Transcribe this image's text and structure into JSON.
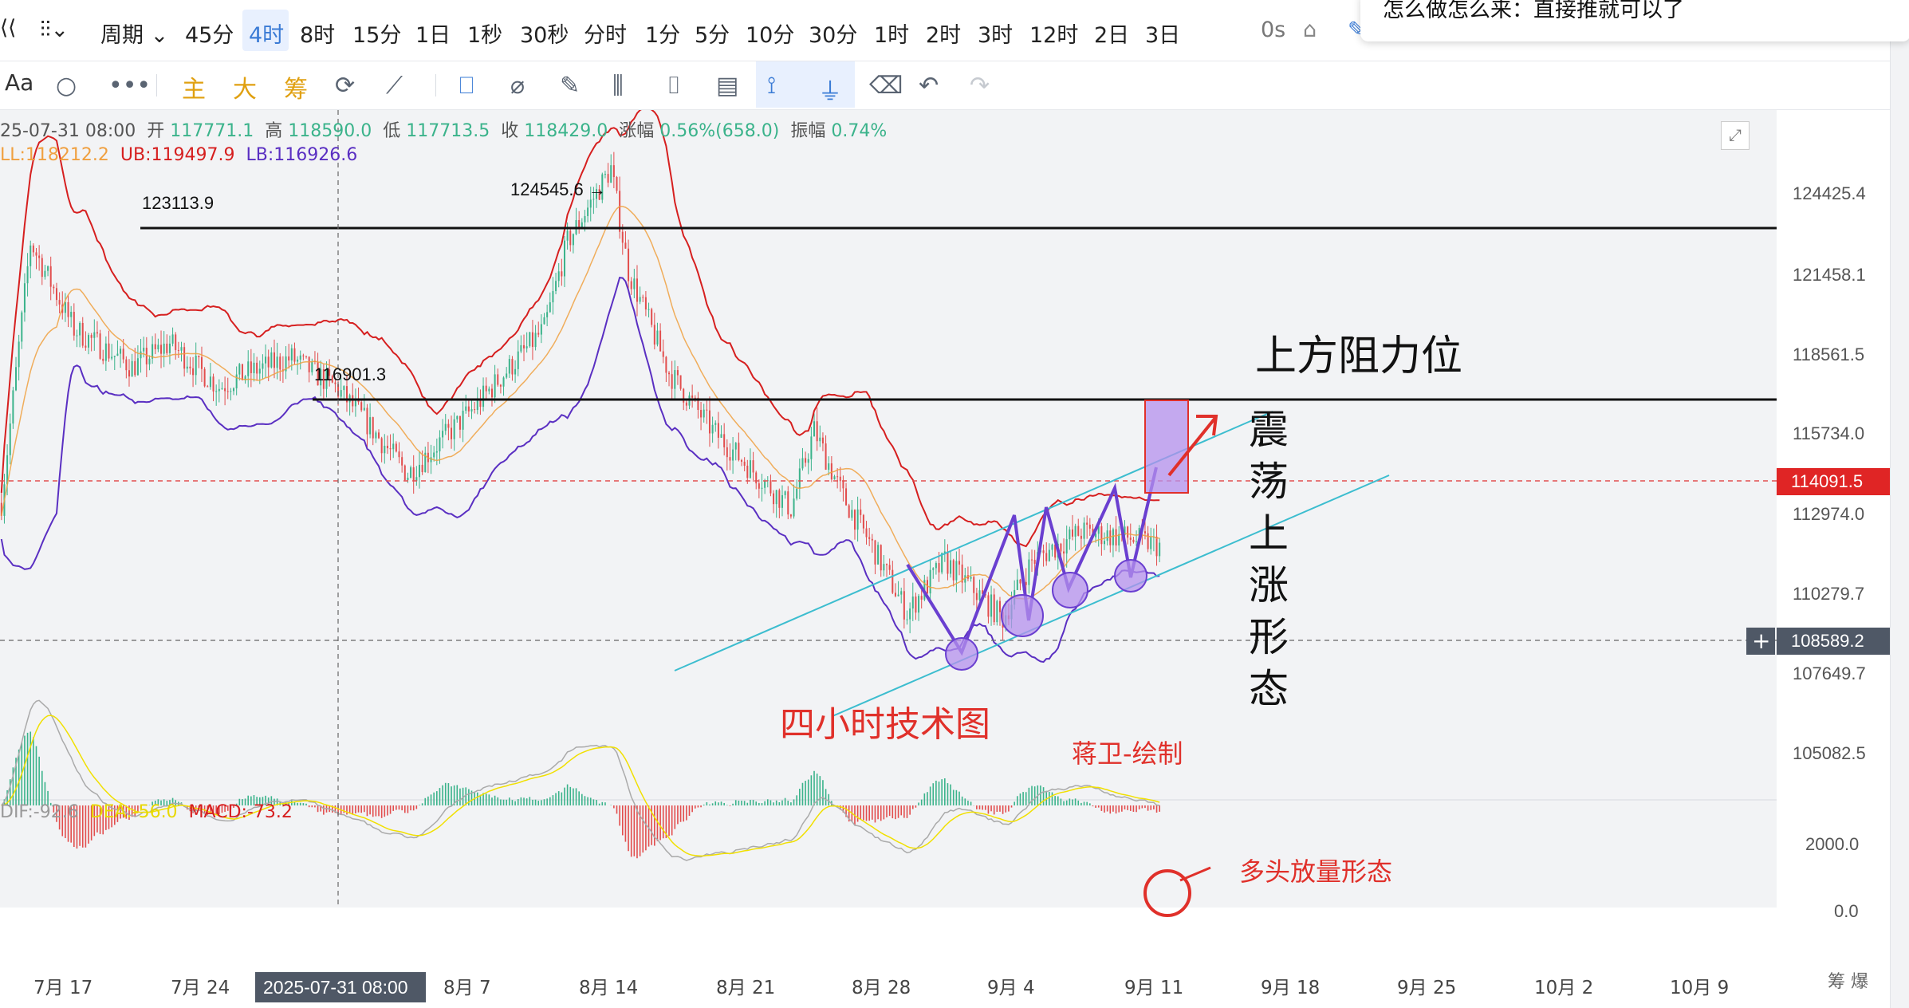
{
  "toolbar": {
    "periods_label": "周期",
    "periods": [
      "45分",
      "4时",
      "8时",
      "15分",
      "1日",
      "1秒",
      "30秒",
      "分时",
      "1分",
      "5分",
      "10分",
      "30分",
      "1时",
      "2时",
      "3时",
      "12时",
      "2日",
      "3日"
    ],
    "active_period": "4时",
    "countdown": "0s"
  },
  "drawbar": {
    "font_label": "Aa",
    "indicators": [
      "主",
      "大",
      "筹"
    ]
  },
  "notification": {
    "text": "怎么做怎么来：直接推就可以了"
  },
  "info": {
    "datetime": "25-07-31 08:00",
    "open_label": "开",
    "open": "117771.1",
    "high_label": "高",
    "high": "118590.0",
    "low_label": "低",
    "low": "117713.5",
    "close_label": "收",
    "close": "118429.0",
    "change_label": "涨幅",
    "change": "0.56%(658.0)",
    "amp_label": "振幅",
    "amp": "0.74%",
    "boll_mid": "LL:118212.2",
    "boll_ub": "UB:119497.9",
    "boll_lb": "LB:116926.6"
  },
  "macd_info": {
    "dif": "DIF:-92.6",
    "dea": "DEA:-56.0",
    "macd": "MACD:-73.2"
  },
  "chart_data": {
    "type": "candlestick",
    "interval": "4时",
    "x_ticks": [
      "7月 17",
      "7月 24",
      "2025-07-31 08:00",
      "8月 7",
      "8月 14",
      "8月 21",
      "8月 28",
      "9月 4",
      "9月 11",
      "9月 18",
      "9月 25",
      "10月 2",
      "10月 9"
    ],
    "y_ticks": [
      124425.4,
      121458.1,
      118561.5,
      115734.0,
      112974.0,
      110279.7,
      107649.7,
      105082.5
    ],
    "ylim": [
      103600,
      125900
    ],
    "current_price": "114091.5",
    "crosshair_price": "108589.2",
    "price_labels": [
      {
        "text": "123113.9",
        "price": 123113.9
      },
      {
        "text": "124545.6 →",
        "price": 124545.6
      },
      {
        "text": "116901.3",
        "price": 116901.3
      }
    ],
    "macd_ticks": [
      "2000.0",
      "0.0"
    ],
    "corner_label": "筹 爆"
  },
  "annotations": {
    "resistance": "上方阻力位",
    "pattern": "震荡上涨形态",
    "title": "四小时技术图",
    "author": "蒋卫-绘制",
    "macd_note": "多头放量形态"
  },
  "colors": {
    "up": "#3bb38b",
    "down": "#e24d4d",
    "ub": "#d61f1f",
    "lb": "#5a2fc2",
    "mid": "#f0a040",
    "channel": "#3cbdcf",
    "annot_red": "#e0302a",
    "pattern_line": "#6a3fd0"
  }
}
